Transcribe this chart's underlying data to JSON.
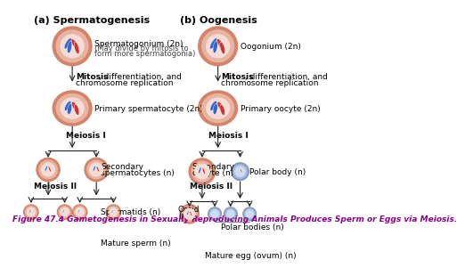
{
  "bg_color": "#ffffff",
  "border_color": "#222222",
  "fig_caption": "Figure 47.4 Gametogenesis in Sexually Reproducing Animals Produces Sperm or Eggs via Meiosis.",
  "caption_color": "#8B008B",
  "caption_fontsize": 6.5,
  "title_a": "(a) Spermatogenesis",
  "title_b": "(b) Oogenesis",
  "title_fontsize": 8,
  "label_fontsize": 6.5,
  "bold_fontsize": 6.5,
  "cell_outer_color": "#D4846A",
  "cell_inner_color": "#E8B4A0",
  "cell_nucleus_color": "#F5DDD5",
  "chr_blue": "#3366CC",
  "chr_red": "#CC3333",
  "arrow_color": "#222222",
  "polar_body_outer": "#8899BB",
  "polar_body_inner": "#AABBDD",
  "sperm_color": "#CC4444",
  "egg_outer": "#D4846A",
  "egg_inner": "#E8B4A0"
}
